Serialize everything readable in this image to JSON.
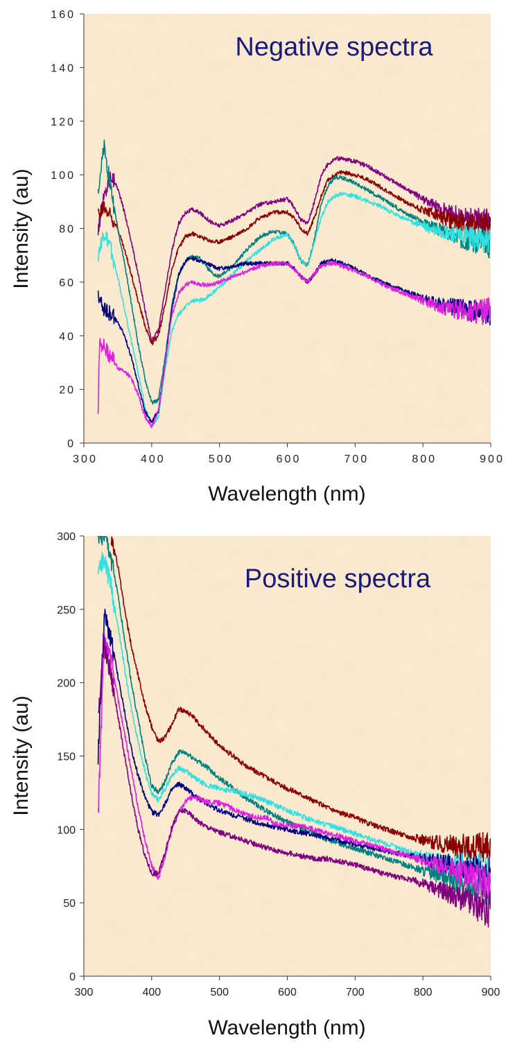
{
  "colors": {
    "background": "#f8e6c8",
    "title": "#1a1a7a",
    "darkred": "#8b0000",
    "purple": "#800080",
    "teal": "#008080",
    "cyan": "#33e0e0",
    "navy": "#000080",
    "magenta": "#e020e0"
  },
  "chart_data": [
    {
      "type": "line",
      "title": "Negative spectra",
      "xlabel": "Wavelength (nm)",
      "ylabel": "Intensity (au)",
      "xlim": [
        300,
        900
      ],
      "ylim": [
        0,
        160
      ],
      "xticks": [
        "300",
        "400",
        "500",
        "600",
        "700",
        "800",
        "900"
      ],
      "yticks": [
        "0",
        "20",
        "40",
        "60",
        "80",
        "100",
        "120",
        "140",
        "160"
      ],
      "grid": false,
      "legend": "none",
      "series": [
        {
          "color": "#800080",
          "x": [
            321,
            330,
            340,
            350,
            360,
            370,
            380,
            390,
            400,
            410,
            420,
            430,
            440,
            450,
            460,
            470,
            480,
            490,
            500,
            520,
            540,
            560,
            580,
            600,
            610,
            620,
            630,
            640,
            650,
            660,
            670,
            680,
            700,
            720,
            740,
            760,
            780,
            800,
            820,
            840,
            860,
            880,
            900
          ],
          "y": [
            80,
            92,
            100,
            95,
            86,
            75,
            63,
            50,
            38,
            42,
            57,
            72,
            82,
            86,
            87,
            86,
            84,
            82,
            81,
            83,
            86,
            89,
            90,
            91,
            88,
            83,
            82,
            90,
            100,
            104,
            106,
            106,
            105,
            103,
            100,
            97,
            94,
            91,
            88,
            86,
            84,
            83,
            82
          ]
        },
        {
          "color": "#8b0000",
          "x": [
            321,
            330,
            340,
            350,
            360,
            370,
            380,
            390,
            400,
            410,
            420,
            430,
            440,
            450,
            460,
            470,
            480,
            490,
            500,
            520,
            540,
            560,
            580,
            600,
            610,
            620,
            630,
            640,
            650,
            660,
            670,
            680,
            700,
            720,
            740,
            760,
            780,
            800,
            820,
            840,
            860,
            880,
            900
          ],
          "y": [
            85,
            88,
            85,
            80,
            72,
            63,
            53,
            44,
            37,
            40,
            52,
            65,
            73,
            77,
            78,
            77,
            76,
            75,
            75,
            77,
            80,
            84,
            86,
            86,
            84,
            80,
            78,
            84,
            92,
            98,
            100,
            101,
            100,
            98,
            95,
            92,
            89,
            87,
            85,
            83,
            82,
            81,
            80
          ]
        },
        {
          "color": "#008080",
          "x": [
            321,
            330,
            340,
            350,
            360,
            370,
            380,
            390,
            400,
            410,
            420,
            430,
            440,
            450,
            460,
            470,
            480,
            490,
            500,
            520,
            540,
            560,
            580,
            600,
            610,
            620,
            630,
            640,
            650,
            660,
            670,
            680,
            700,
            720,
            740,
            760,
            780,
            800,
            820,
            840,
            860,
            880,
            900
          ],
          "y": [
            95,
            110,
            95,
            80,
            67,
            52,
            37,
            24,
            15,
            16,
            32,
            52,
            63,
            68,
            70,
            69,
            66,
            63,
            62,
            66,
            72,
            77,
            79,
            78,
            74,
            68,
            66,
            76,
            89,
            96,
            99,
            99,
            97,
            94,
            91,
            88,
            85,
            82,
            80,
            78,
            76,
            75,
            74
          ]
        },
        {
          "color": "#33e0e0",
          "x": [
            321,
            330,
            340,
            350,
            360,
            370,
            380,
            390,
            400,
            410,
            420,
            430,
            440,
            450,
            460,
            470,
            480,
            490,
            500,
            520,
            540,
            560,
            580,
            600,
            610,
            620,
            630,
            640,
            650,
            660,
            670,
            680,
            700,
            720,
            740,
            760,
            780,
            800,
            820,
            840,
            860,
            880,
            900
          ],
          "y": [
            70,
            78,
            72,
            62,
            50,
            38,
            26,
            14,
            6,
            10,
            28,
            42,
            48,
            51,
            53,
            53,
            54,
            56,
            58,
            63,
            68,
            72,
            76,
            78,
            74,
            68,
            66,
            75,
            84,
            90,
            92,
            93,
            92,
            90,
            88,
            85,
            83,
            81,
            79,
            78,
            77,
            76,
            75
          ]
        },
        {
          "color": "#000080",
          "x": [
            321,
            330,
            340,
            350,
            360,
            370,
            380,
            390,
            400,
            410,
            420,
            430,
            440,
            450,
            460,
            470,
            480,
            490,
            500,
            520,
            540,
            560,
            580,
            600,
            610,
            620,
            630,
            640,
            650,
            660,
            670,
            680,
            700,
            720,
            740,
            760,
            780,
            800,
            820,
            840,
            860,
            880,
            900
          ],
          "y": [
            55,
            50,
            48,
            45,
            40,
            32,
            22,
            12,
            8,
            12,
            30,
            50,
            63,
            68,
            69,
            68,
            67,
            66,
            65,
            66,
            67,
            67,
            67,
            67,
            65,
            62,
            60,
            63,
            67,
            68,
            68,
            67,
            65,
            62,
            60,
            58,
            56,
            54,
            52,
            51,
            50,
            49,
            49
          ]
        },
        {
          "color": "#e020e0",
          "x": [
            321,
            323,
            330,
            340,
            350,
            360,
            370,
            380,
            390,
            400,
            410,
            420,
            430,
            440,
            450,
            460,
            470,
            480,
            490,
            500,
            520,
            540,
            560,
            580,
            600,
            610,
            620,
            630,
            640,
            650,
            660,
            670,
            680,
            700,
            720,
            740,
            760,
            780,
            800,
            820,
            840,
            860,
            880,
            900
          ],
          "y": [
            11,
            38,
            36,
            32,
            28,
            27,
            24,
            18,
            10,
            6,
            12,
            30,
            48,
            56,
            59,
            60,
            59,
            59,
            59,
            60,
            62,
            64,
            66,
            67,
            67,
            65,
            62,
            60,
            63,
            66,
            67,
            67,
            66,
            64,
            62,
            59,
            57,
            55,
            53,
            51,
            50,
            49,
            49,
            49
          ]
        }
      ]
    },
    {
      "type": "line",
      "title": "Positive spectra",
      "xlabel": "Wavelength (nm)",
      "ylabel": "Intensity (au)",
      "xlim": [
        300,
        900
      ],
      "ylim": [
        0,
        300
      ],
      "xticks": [
        "300",
        "400",
        "500",
        "600",
        "700",
        "800",
        "900"
      ],
      "yticks": [
        "0",
        "50",
        "100",
        "150",
        "200",
        "250",
        "300"
      ],
      "grid": false,
      "legend": "none",
      "series": [
        {
          "color": "#8b0000",
          "x": [
            340,
            350,
            360,
            370,
            380,
            390,
            400,
            410,
            420,
            430,
            440,
            450,
            460,
            470,
            480,
            500,
            520,
            540,
            560,
            580,
            600,
            620,
            640,
            660,
            680,
            700,
            720,
            740,
            760,
            780,
            800,
            820,
            840,
            860,
            880,
            900
          ],
          "y": [
            300,
            280,
            250,
            225,
            205,
            185,
            170,
            160,
            163,
            172,
            182,
            181,
            177,
            172,
            167,
            157,
            150,
            143,
            138,
            133,
            128,
            124,
            119,
            115,
            111,
            108,
            104,
            101,
            98,
            95,
            93,
            91,
            89,
            88,
            87,
            86
          ]
        },
        {
          "color": "#008080",
          "x": [
            321,
            330,
            340,
            350,
            360,
            370,
            380,
            390,
            400,
            410,
            420,
            430,
            440,
            450,
            460,
            470,
            480,
            500,
            520,
            540,
            560,
            580,
            600,
            620,
            640,
            660,
            680,
            700,
            720,
            740,
            760,
            780,
            800,
            820,
            840,
            860,
            880,
            900
          ],
          "y": [
            300,
            300,
            285,
            260,
            230,
            200,
            175,
            150,
            130,
            125,
            133,
            145,
            153,
            152,
            149,
            146,
            143,
            135,
            128,
            121,
            115,
            110,
            105,
            101,
            97,
            93,
            90,
            87,
            84,
            81,
            78,
            75,
            72,
            69,
            66,
            63,
            60,
            58
          ]
        },
        {
          "color": "#33e0e0",
          "x": [
            321,
            330,
            340,
            350,
            360,
            370,
            380,
            390,
            400,
            410,
            420,
            430,
            440,
            450,
            460,
            470,
            480,
            500,
            520,
            540,
            560,
            580,
            600,
            620,
            640,
            660,
            680,
            700,
            720,
            740,
            760,
            780,
            800,
            820,
            840,
            860,
            880,
            900
          ],
          "y": [
            275,
            285,
            265,
            240,
            210,
            182,
            160,
            140,
            124,
            120,
            128,
            137,
            142,
            140,
            136,
            133,
            130,
            128,
            126,
            124,
            121,
            117,
            113,
            109,
            106,
            103,
            100,
            97,
            94,
            91,
            88,
            85,
            82,
            79,
            77,
            75,
            73,
            71
          ]
        },
        {
          "color": "#000080",
          "x": [
            321,
            330,
            340,
            350,
            360,
            370,
            380,
            390,
            400,
            410,
            420,
            430,
            440,
            450,
            460,
            470,
            480,
            500,
            520,
            540,
            560,
            580,
            600,
            620,
            640,
            660,
            680,
            700,
            720,
            740,
            760,
            780,
            800,
            820,
            840,
            860,
            880,
            900
          ],
          "y": [
            150,
            245,
            230,
            205,
            180,
            155,
            137,
            122,
            112,
            110,
            118,
            127,
            131,
            128,
            124,
            121,
            118,
            113,
            110,
            107,
            104,
            102,
            100,
            98,
            96,
            94,
            92,
            90,
            88,
            86,
            84,
            82,
            80,
            78,
            76,
            74,
            72,
            70
          ]
        },
        {
          "color": "#e020e0",
          "x": [
            321,
            330,
            340,
            350,
            360,
            370,
            380,
            390,
            400,
            410,
            420,
            430,
            440,
            450,
            460,
            470,
            480,
            500,
            520,
            540,
            560,
            570,
            580,
            600,
            620,
            640,
            660,
            680,
            700,
            720,
            740,
            760,
            780,
            800,
            820,
            840,
            860,
            880,
            900
          ],
          "y": [
            110,
            230,
            215,
            190,
            165,
            140,
            115,
            93,
            75,
            67,
            82,
            100,
            112,
            119,
            122,
            121,
            119,
            118,
            114,
            110,
            108,
            108,
            104,
            103,
            102,
            100,
            97,
            95,
            92,
            90,
            87,
            84,
            82,
            79,
            76,
            73,
            70,
            66,
            62
          ]
        },
        {
          "color": "#800080",
          "x": [
            321,
            330,
            340,
            350,
            360,
            370,
            380,
            390,
            400,
            410,
            420,
            430,
            440,
            450,
            460,
            470,
            480,
            500,
            520,
            540,
            560,
            580,
            600,
            620,
            640,
            660,
            680,
            700,
            720,
            740,
            760,
            780,
            800,
            820,
            840,
            860,
            880,
            900
          ],
          "y": [
            180,
            225,
            205,
            178,
            150,
            123,
            100,
            82,
            70,
            70,
            85,
            102,
            112,
            113,
            109,
            105,
            102,
            98,
            95,
            92,
            89,
            86,
            84,
            82,
            80,
            80,
            78,
            76,
            73,
            70,
            68,
            66,
            63,
            60,
            56,
            52,
            48,
            45
          ]
        }
      ]
    }
  ]
}
